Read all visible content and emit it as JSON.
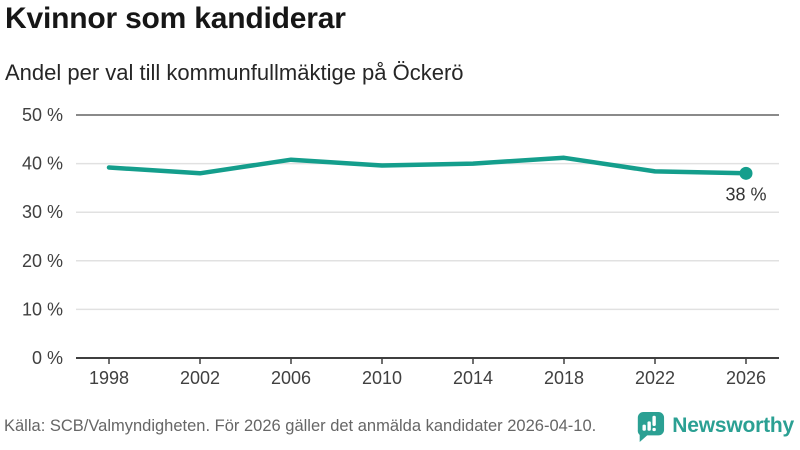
{
  "chart_data": {
    "type": "line",
    "title": "Kvinnor som kandiderar",
    "subtitle": "Andel per val till kommunfullmäktige på Öckerö",
    "categories": [
      "1998",
      "2002",
      "2006",
      "2010",
      "2014",
      "2018",
      "2022",
      "2026"
    ],
    "series": [
      {
        "name": "Andel kvinnor som kandiderar",
        "values": [
          39.2,
          38.0,
          40.8,
          39.6,
          40.0,
          41.2,
          38.4,
          38.0
        ]
      }
    ],
    "ylim": [
      0,
      50
    ],
    "y_ticks": [
      {
        "value": 0,
        "label": "0 %"
      },
      {
        "value": 10,
        "label": "10 %"
      },
      {
        "value": 20,
        "label": "20 %"
      },
      {
        "value": 30,
        "label": "30 %"
      },
      {
        "value": 40,
        "label": "40 %"
      },
      {
        "value": 50,
        "label": "50 %"
      }
    ],
    "grid": true,
    "legend": false,
    "end_point_label": "38 %",
    "colors": {
      "line": "#149e8c",
      "grid": "#e1e1e1",
      "grid_top": "#8a8a8a",
      "axis": "#3f3f3f",
      "tick_label": "#404040",
      "annotation": "#333333"
    }
  },
  "footer": {
    "source": "Källa: SCB/Valmyndigheten. För 2026 gäller det anmälda kandidater 2026-04-10.",
    "logo": {
      "text": "Newsworthy",
      "color": "#2ba093",
      "icon": "newsworthy-speech-bubble-bar-chart-icon"
    }
  }
}
